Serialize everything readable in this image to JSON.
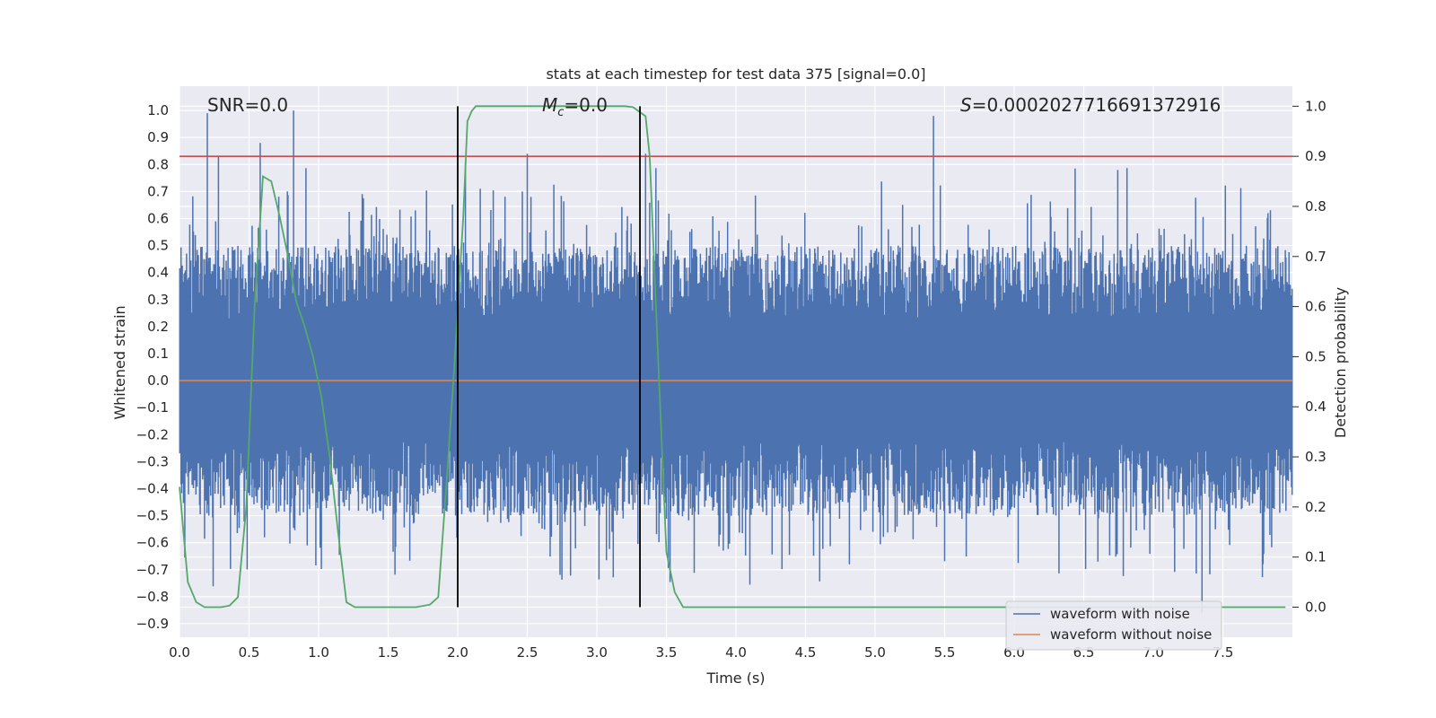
{
  "chart_data": {
    "type": "line",
    "title": "stats at each timestep for test data 375 [signal=0.0]",
    "xlabel": "Time (s)",
    "ylabel": "Whitened strain",
    "ylabel_right": "Detection probability",
    "xlim": [
      0.0,
      8.0
    ],
    "ylim": [
      -0.95,
      1.09
    ],
    "ylim_right": [
      -0.06,
      1.04
    ],
    "xticks": [
      "0.0",
      "0.5",
      "1.0",
      "1.5",
      "2.0",
      "2.5",
      "3.0",
      "3.5",
      "4.0",
      "4.5",
      "5.0",
      "5.5",
      "6.0",
      "6.5",
      "7.0",
      "7.5"
    ],
    "yticks": [
      "1.0",
      "0.9",
      "0.8",
      "0.7",
      "0.6",
      "0.5",
      "0.4",
      "0.3",
      "0.2",
      "0.1",
      "0.0",
      "−0.1",
      "−0.2",
      "−0.3",
      "−0.4",
      "−0.5",
      "−0.6",
      "−0.7",
      "−0.8",
      "−0.9"
    ],
    "yticks_right": [
      "1.0",
      "0.9",
      "0.8",
      "0.7",
      "0.6",
      "0.5",
      "0.4",
      "0.3",
      "0.2",
      "0.1",
      "0.0"
    ],
    "grid": true,
    "annotations": {
      "snr": "SNR=0.0",
      "mc_symbol": "M",
      "mc_sub": "c",
      "mc_value": "=0.0",
      "s_symbol": "S",
      "s_value": "=0.0002027716691372916"
    },
    "threshold_right": 0.9,
    "marker_lines_x": [
      2.0,
      3.31
    ],
    "legend": {
      "placement": "bottom-right",
      "entries": [
        "waveform with noise",
        "waveform without noise"
      ]
    },
    "series": [
      {
        "name": "waveform with noise",
        "color": "#4c72b0",
        "axis": "left",
        "style": "dense noise, peaks between about -0.86 and 1.0",
        "peaks_x": [
          0.2,
          0.28,
          0.58,
          0.82,
          2.5,
          3.35,
          5.42,
          7.35
        ],
        "peaks_y": [
          0.99,
          0.83,
          0.88,
          1.0,
          0.84,
          0.84,
          0.98,
          -0.86
        ]
      },
      {
        "name": "waveform without noise",
        "color": "#dd8452",
        "axis": "left",
        "x": [
          0.0,
          8.0
        ],
        "values": [
          0.0,
          0.0
        ]
      },
      {
        "name": "Detection probability",
        "color": "#55a868",
        "axis": "right",
        "x": [
          0.0,
          0.06,
          0.12,
          0.18,
          0.24,
          0.3,
          0.36,
          0.42,
          0.48,
          0.54,
          0.6,
          0.66,
          0.72,
          0.78,
          0.84,
          0.9,
          0.96,
          1.02,
          1.08,
          1.14,
          1.2,
          1.26,
          1.32,
          1.5,
          1.7,
          1.8,
          1.86,
          1.92,
          1.98,
          2.04,
          2.07,
          2.1,
          2.13,
          2.2,
          2.5,
          3.0,
          3.2,
          3.26,
          3.3,
          3.35,
          3.38,
          3.44,
          3.5,
          3.56,
          3.62,
          4.0,
          5.0,
          6.0,
          7.0,
          7.95
        ],
        "values": [
          0.24,
          0.05,
          0.01,
          0.0,
          0.0,
          0.0,
          0.003,
          0.02,
          0.2,
          0.6,
          0.86,
          0.85,
          0.78,
          0.7,
          0.61,
          0.56,
          0.5,
          0.42,
          0.3,
          0.15,
          0.01,
          0.0,
          0.0,
          0.0,
          0.0,
          0.005,
          0.02,
          0.25,
          0.5,
          0.78,
          0.97,
          0.99,
          1.0,
          1.0,
          1.0,
          1.0,
          1.0,
          0.998,
          0.99,
          0.98,
          0.9,
          0.5,
          0.11,
          0.03,
          0.0,
          0.0,
          0.0,
          0.0,
          0.0,
          0.0
        ]
      }
    ]
  }
}
